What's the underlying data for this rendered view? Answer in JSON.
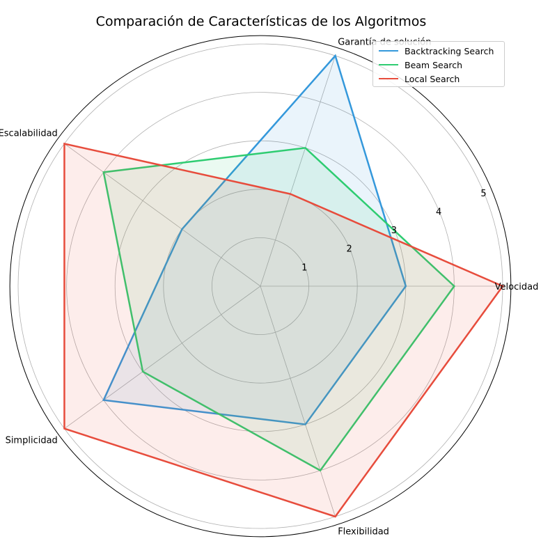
{
  "chart_data": {
    "type": "radar",
    "title": "Comparación de Características de los Algoritmos",
    "axes": [
      "Velocidad",
      "Garantía de solución",
      "Escalabilidad",
      "Simplicidad",
      "Flexibilidad"
    ],
    "rlim": [
      0,
      5
    ],
    "rticks": [
      "1",
      "2",
      "3",
      "4",
      "5"
    ],
    "grid": true,
    "legend_position": "top-right",
    "series": [
      {
        "name": "Backtracking Search",
        "color": "#3498db",
        "values": [
          3,
          5,
          2,
          4,
          3
        ]
      },
      {
        "name": "Beam Search",
        "color": "#2ecc71",
        "values": [
          4,
          3,
          4,
          3,
          4
        ]
      },
      {
        "name": "Local Search",
        "color": "#e74c3c",
        "values": [
          5,
          2,
          5,
          5,
          5
        ]
      }
    ]
  }
}
